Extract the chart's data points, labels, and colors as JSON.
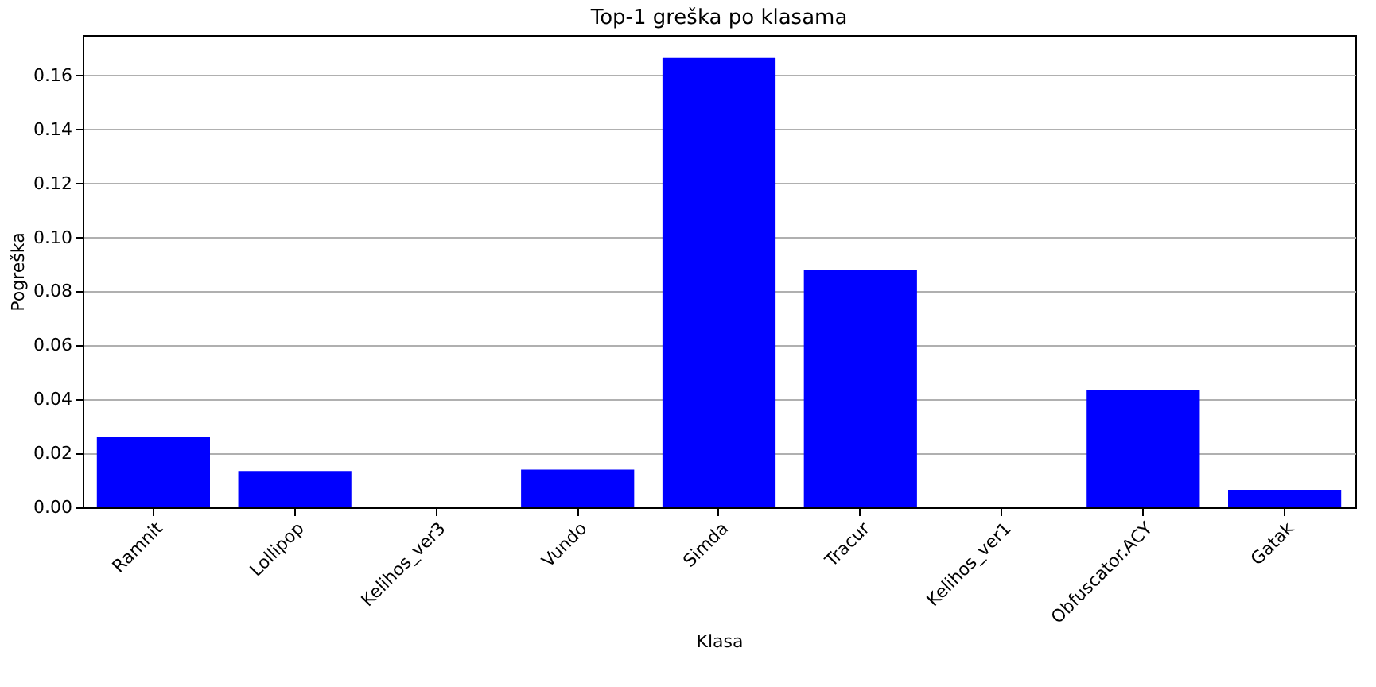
{
  "chart_data": {
    "type": "bar",
    "title": "Top-1 greška po klasama",
    "xlabel": "Klasa",
    "ylabel": "Pogreška",
    "categories": [
      "Ramnit",
      "Lollipop",
      "Kelihos_ver3",
      "Vundo",
      "Simda",
      "Tracur",
      "Kelihos_ver1",
      "Obfuscator.ACY",
      "Gatak"
    ],
    "values": [
      0.026,
      0.0135,
      0,
      0.014,
      0.1665,
      0.088,
      0,
      0.0435,
      0.0065
    ],
    "color": "#0000ff",
    "ylim": [
      0,
      0.175
    ],
    "yticks": [
      {
        "value": 0,
        "label": "0.00"
      },
      {
        "value": 0.02,
        "label": "0.02"
      },
      {
        "value": 0.04,
        "label": "0.04"
      },
      {
        "value": 0.06,
        "label": "0.06"
      },
      {
        "value": 0.08,
        "label": "0.08"
      },
      {
        "value": 0.1,
        "label": "0.10"
      },
      {
        "value": 0.12,
        "label": "0.12"
      },
      {
        "value": 0.14,
        "label": "0.14"
      },
      {
        "value": 0.16,
        "label": "0.16"
      }
    ],
    "grid": "y"
  }
}
